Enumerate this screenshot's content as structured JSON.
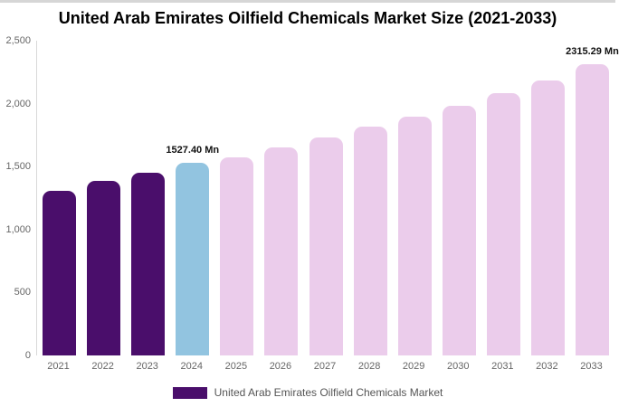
{
  "page": {
    "background": "#ffffff"
  },
  "chart_data": {
    "type": "bar",
    "title": "United Arab Emirates Oilfield Chemicals Market Size (2021-2033)",
    "xlabel": "",
    "ylabel": "",
    "categories": [
      "2021",
      "2022",
      "2023",
      "2024",
      "2025",
      "2026",
      "2027",
      "2028",
      "2029",
      "2030",
      "2031",
      "2032",
      "2033"
    ],
    "values": [
      1310,
      1390,
      1450,
      1527.4,
      1575,
      1655,
      1735,
      1815,
      1895,
      1985,
      2080,
      2185,
      2315.29
    ],
    "ylim": [
      0,
      2500
    ],
    "grid": false,
    "y_ticks": [
      {
        "value": 0,
        "label": "0"
      },
      {
        "value": 500,
        "label": "500"
      },
      {
        "value": 1000,
        "label": "1,000"
      },
      {
        "value": 1500,
        "label": "1,500"
      },
      {
        "value": 2000,
        "label": "2,000"
      },
      {
        "value": 2500,
        "label": "2,500"
      }
    ],
    "colors": {
      "historical": "#4A0E6B",
      "highlight": "#92C4E0",
      "forecast": "#EBCCEB"
    },
    "bar_styles": [
      "historical",
      "historical",
      "historical",
      "highlight",
      "forecast",
      "forecast",
      "forecast",
      "forecast",
      "forecast",
      "forecast",
      "forecast",
      "forecast",
      "forecast"
    ],
    "annotations": [
      {
        "category": "2024",
        "text": "1527.40 Mn"
      },
      {
        "category": "2033",
        "text": "2315.29 Mn"
      }
    ],
    "legend": {
      "position": "bottom",
      "items": [
        {
          "label": "United Arab Emirates Oilfield Chemicals Market",
          "color": "#4A0E6B"
        }
      ]
    }
  }
}
